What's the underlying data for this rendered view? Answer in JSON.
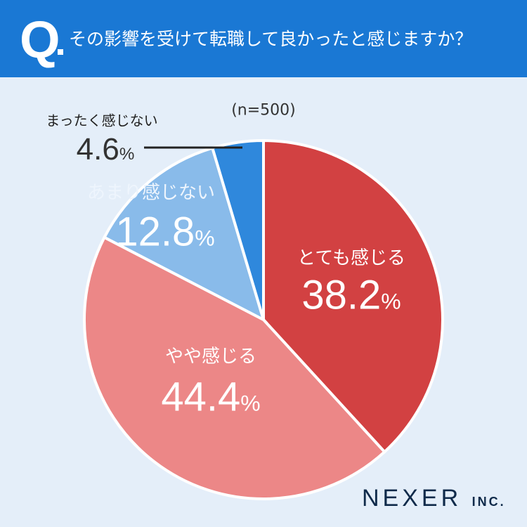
{
  "header": {
    "q": "Q",
    "title": "その影響を受けて転職して良かったと感じますか？"
  },
  "chart_data": {
    "type": "pie",
    "title": "その影響を受けて転職して良かったと感じますか？",
    "note": "(n=500)",
    "unit": "%",
    "categories": [
      "とても感じる",
      "やや感じる",
      "あまり感じない",
      "まったく感じない"
    ],
    "values": [
      38.2,
      44.4,
      12.8,
      4.6
    ],
    "labels": [
      "38.2",
      "44.4",
      "12.8",
      "4.6"
    ],
    "colors": [
      "#d24142",
      "#ec8787",
      "#89bbea",
      "#2f88dc"
    ],
    "start": "top, clockwise"
  },
  "logo": {
    "main": "NEXER",
    "sub": "INC."
  }
}
